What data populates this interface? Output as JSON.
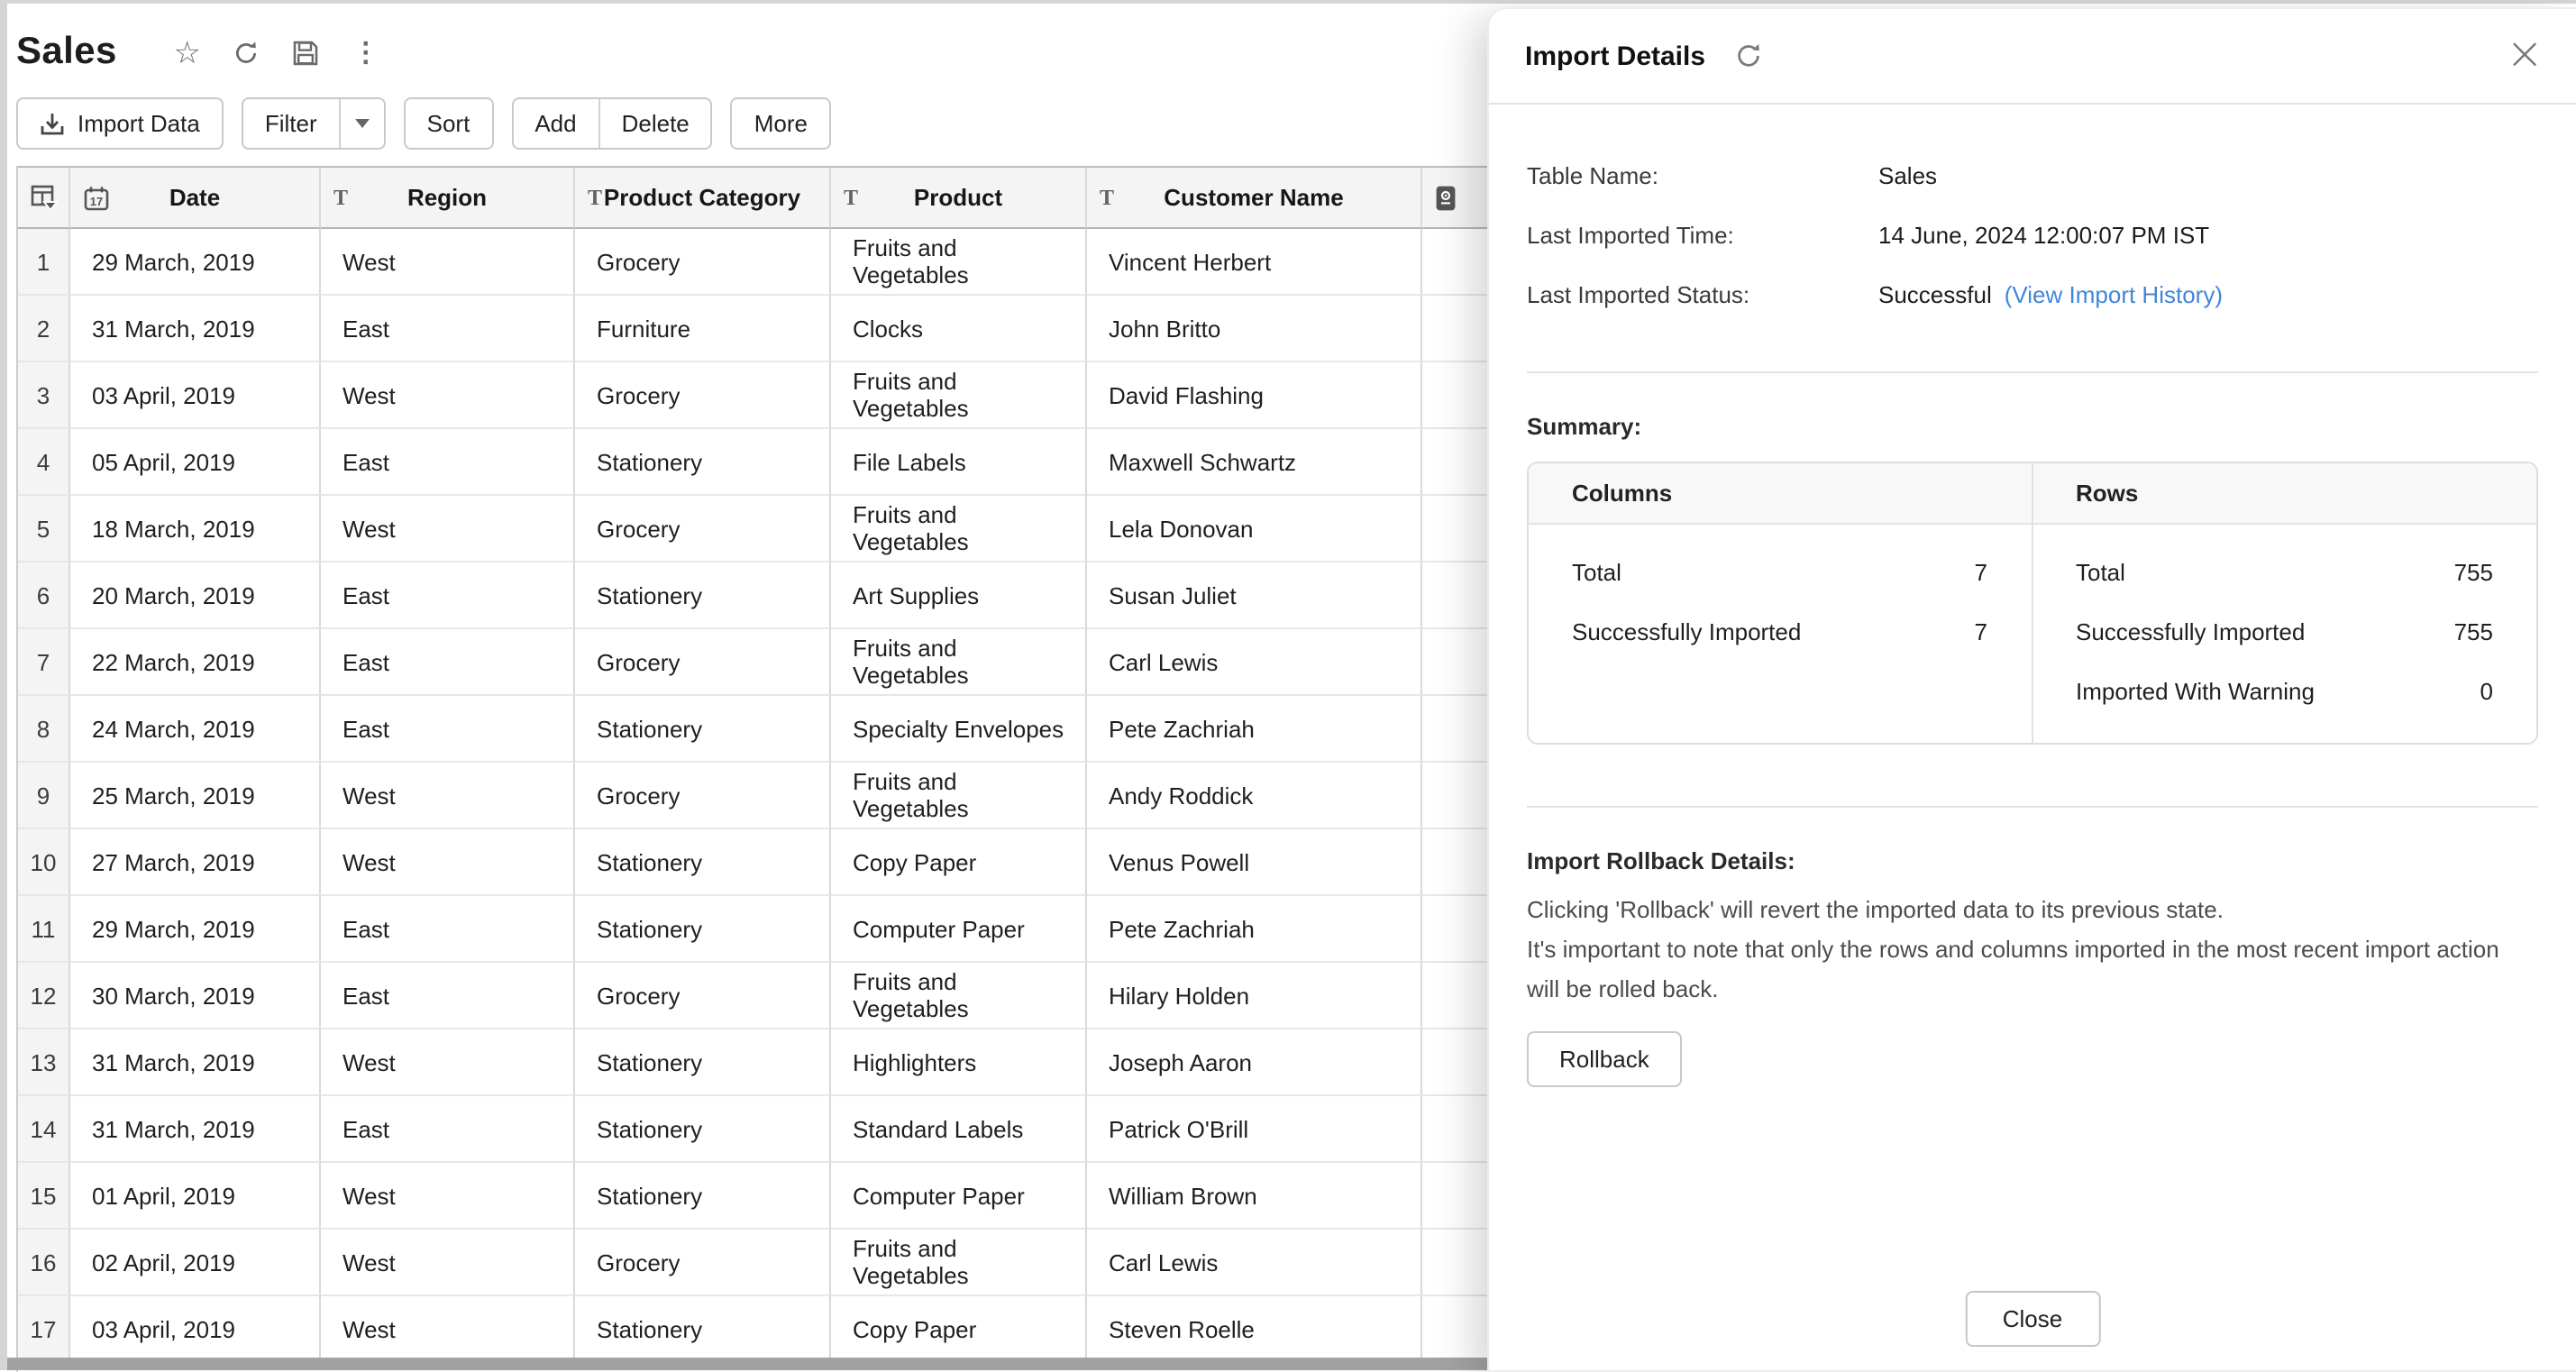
{
  "window": {
    "title": "Sales"
  },
  "toolbar": {
    "import_label": "Import Data",
    "filter_label": "Filter",
    "sort_label": "Sort",
    "add_label": "Add",
    "delete_label": "Delete",
    "more_label": "More"
  },
  "table": {
    "columns": [
      {
        "key": "num",
        "label": "",
        "icon": "grid-caret-icon"
      },
      {
        "key": "date",
        "label": "Date",
        "icon": "calendar-icon"
      },
      {
        "key": "region",
        "label": "Region",
        "icon": "text-type-icon"
      },
      {
        "key": "category",
        "label": "Product Category",
        "icon": "text-type-icon"
      },
      {
        "key": "product",
        "label": "Product",
        "icon": "text-type-icon"
      },
      {
        "key": "customer",
        "label": "Customer Name",
        "icon": "text-type-icon"
      },
      {
        "key": "sales",
        "label": "",
        "icon": "currency-icon"
      }
    ],
    "rows": [
      {
        "num": "1",
        "date": "29 March, 2019",
        "region": "West",
        "category": "Grocery",
        "product": "Fruits and Vegetables",
        "customer": "Vincent Herbert"
      },
      {
        "num": "2",
        "date": "31 March, 2019",
        "region": "East",
        "category": "Furniture",
        "product": "Clocks",
        "customer": "John Britto"
      },
      {
        "num": "3",
        "date": "03 April, 2019",
        "region": "West",
        "category": "Grocery",
        "product": "Fruits and Vegetables",
        "customer": "David Flashing"
      },
      {
        "num": "4",
        "date": "05 April, 2019",
        "region": "East",
        "category": "Stationery",
        "product": "File Labels",
        "customer": "Maxwell Schwartz"
      },
      {
        "num": "5",
        "date": "18 March, 2019",
        "region": "West",
        "category": "Grocery",
        "product": "Fruits and Vegetables",
        "customer": "Lela Donovan"
      },
      {
        "num": "6",
        "date": "20 March, 2019",
        "region": "East",
        "category": "Stationery",
        "product": "Art Supplies",
        "customer": "Susan Juliet"
      },
      {
        "num": "7",
        "date": "22 March, 2019",
        "region": "East",
        "category": "Grocery",
        "product": "Fruits and Vegetables",
        "customer": "Carl Lewis"
      },
      {
        "num": "8",
        "date": "24 March, 2019",
        "region": "East",
        "category": "Stationery",
        "product": "Specialty Envelopes",
        "customer": "Pete Zachriah"
      },
      {
        "num": "9",
        "date": "25 March, 2019",
        "region": "West",
        "category": "Grocery",
        "product": "Fruits and Vegetables",
        "customer": "Andy Roddick"
      },
      {
        "num": "10",
        "date": "27 March, 2019",
        "region": "West",
        "category": "Stationery",
        "product": "Copy Paper",
        "customer": "Venus Powell"
      },
      {
        "num": "11",
        "date": "29 March, 2019",
        "region": "East",
        "category": "Stationery",
        "product": "Computer Paper",
        "customer": "Pete Zachriah"
      },
      {
        "num": "12",
        "date": "30 March, 2019",
        "region": "East",
        "category": "Grocery",
        "product": "Fruits and Vegetables",
        "customer": "Hilary Holden"
      },
      {
        "num": "13",
        "date": "31 March, 2019",
        "region": "West",
        "category": "Stationery",
        "product": "Highlighters",
        "customer": "Joseph Aaron"
      },
      {
        "num": "14",
        "date": "31 March, 2019",
        "region": "East",
        "category": "Stationery",
        "product": "Standard Labels",
        "customer": "Patrick O'Brill"
      },
      {
        "num": "15",
        "date": "01 April, 2019",
        "region": "West",
        "category": "Stationery",
        "product": "Computer Paper",
        "customer": "William Brown"
      },
      {
        "num": "16",
        "date": "02 April, 2019",
        "region": "West",
        "category": "Grocery",
        "product": "Fruits and Vegetables",
        "customer": "Carl Lewis"
      },
      {
        "num": "17",
        "date": "03 April, 2019",
        "region": "West",
        "category": "Stationery",
        "product": "Copy Paper",
        "customer": "Steven Roelle"
      }
    ]
  },
  "panel": {
    "title": "Import Details",
    "fields": [
      {
        "label": "Table Name:",
        "value": "Sales"
      },
      {
        "label": "Last Imported Time:",
        "value": "14 June, 2024 12:00:07 PM IST"
      },
      {
        "label": "Last Imported Status:",
        "value": "Successful",
        "value_class": "success",
        "link": "(View Import History)"
      }
    ],
    "summary": {
      "heading": "Summary:",
      "columns_header": "Columns",
      "rows_header": "Rows",
      "columns_stats": [
        {
          "label": "Total",
          "value": "7"
        },
        {
          "label": "Successfully Imported",
          "value": "7"
        }
      ],
      "rows_stats": [
        {
          "label": "Total",
          "value": "755"
        },
        {
          "label": "Successfully Imported",
          "value": "755"
        },
        {
          "label": "Imported With Warning",
          "value": "0"
        }
      ]
    },
    "rollback": {
      "heading": "Import Rollback Details:",
      "line1": "Clicking 'Rollback' will revert the imported data to its previous state.",
      "line2": "It's important to note that only the rows and columns imported in the most recent import action will be rolled back.",
      "button_label": "Rollback"
    },
    "close_label": "Close"
  },
  "colors": {
    "success": "#2e9e44",
    "link": "#4186d8"
  }
}
